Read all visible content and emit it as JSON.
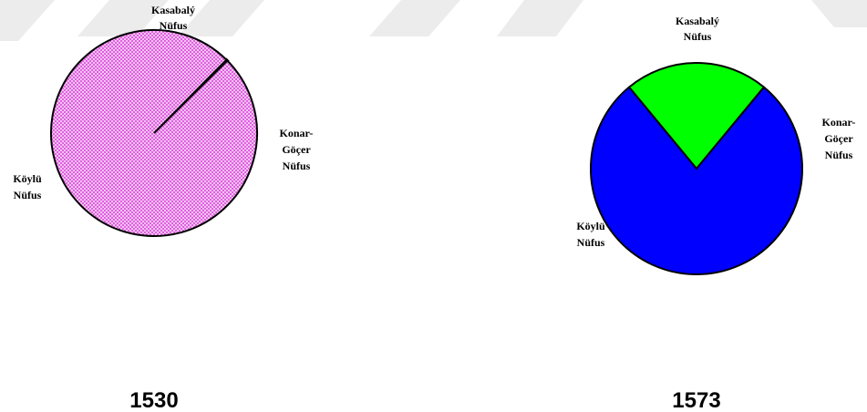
{
  "chart_data": [
    {
      "type": "pie",
      "title": "1530",
      "categories": [
        "Kasabalý Nüfus",
        "Konar-Göçer Nüfus",
        "Köylü Nüfus"
      ],
      "values": [
        0.2,
        0,
        99.8
      ],
      "colors": [
        "#000000",
        "#000000",
        "#e060e0"
      ],
      "fill_pattern": "checkered",
      "label_lines": [
        [
          "Kasabalý",
          "Nüfus"
        ],
        [
          "Konar-",
          "Göçer",
          "Nüfus"
        ],
        [
          "Köylü",
          "Nüfus"
        ]
      ]
    },
    {
      "type": "pie",
      "title": "1573",
      "categories": [
        "Kasabalý Nüfus",
        "Konar-Göçer Nüfus",
        "Köylü Nüfus"
      ],
      "values": [
        22,
        0,
        78
      ],
      "colors": [
        "#00ff00",
        "#000000",
        "#0000ff"
      ],
      "fill_pattern": "solid",
      "label_lines": [
        [
          "Kasabalý",
          "Nüfus"
        ],
        [
          "Konar-",
          "Göçer",
          "Nüfus"
        ],
        [
          "Köylü",
          "Nüfus"
        ]
      ]
    }
  ]
}
